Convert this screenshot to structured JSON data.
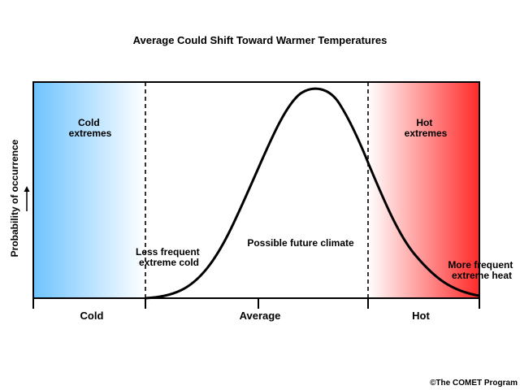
{
  "title": "Average Could Shift Toward Warmer Temperatures",
  "y_axis_label": "Probability of occurrence",
  "regions": {
    "cold": {
      "label_line1": "Cold",
      "label_line2": "extremes",
      "color_edge": "#6ec3ff",
      "color_inner": "#ffffff"
    },
    "hot": {
      "label_line1": "Hot",
      "label_line2": "extremes",
      "color_edge": "#ff2a2a",
      "color_inner": "#ffffff"
    }
  },
  "annotations": {
    "cold_tail_line1": "Less frequent",
    "cold_tail_line2": "extreme cold",
    "center": "Possible future climate",
    "hot_tail_line1": "More frequent",
    "hot_tail_line2": "extreme heat"
  },
  "x_axis": {
    "cold": "Cold",
    "average": "Average",
    "hot": "Hot"
  },
  "credit": "©The COMET Program",
  "colors": {
    "curve": "#000000",
    "frame": "#000000"
  }
}
